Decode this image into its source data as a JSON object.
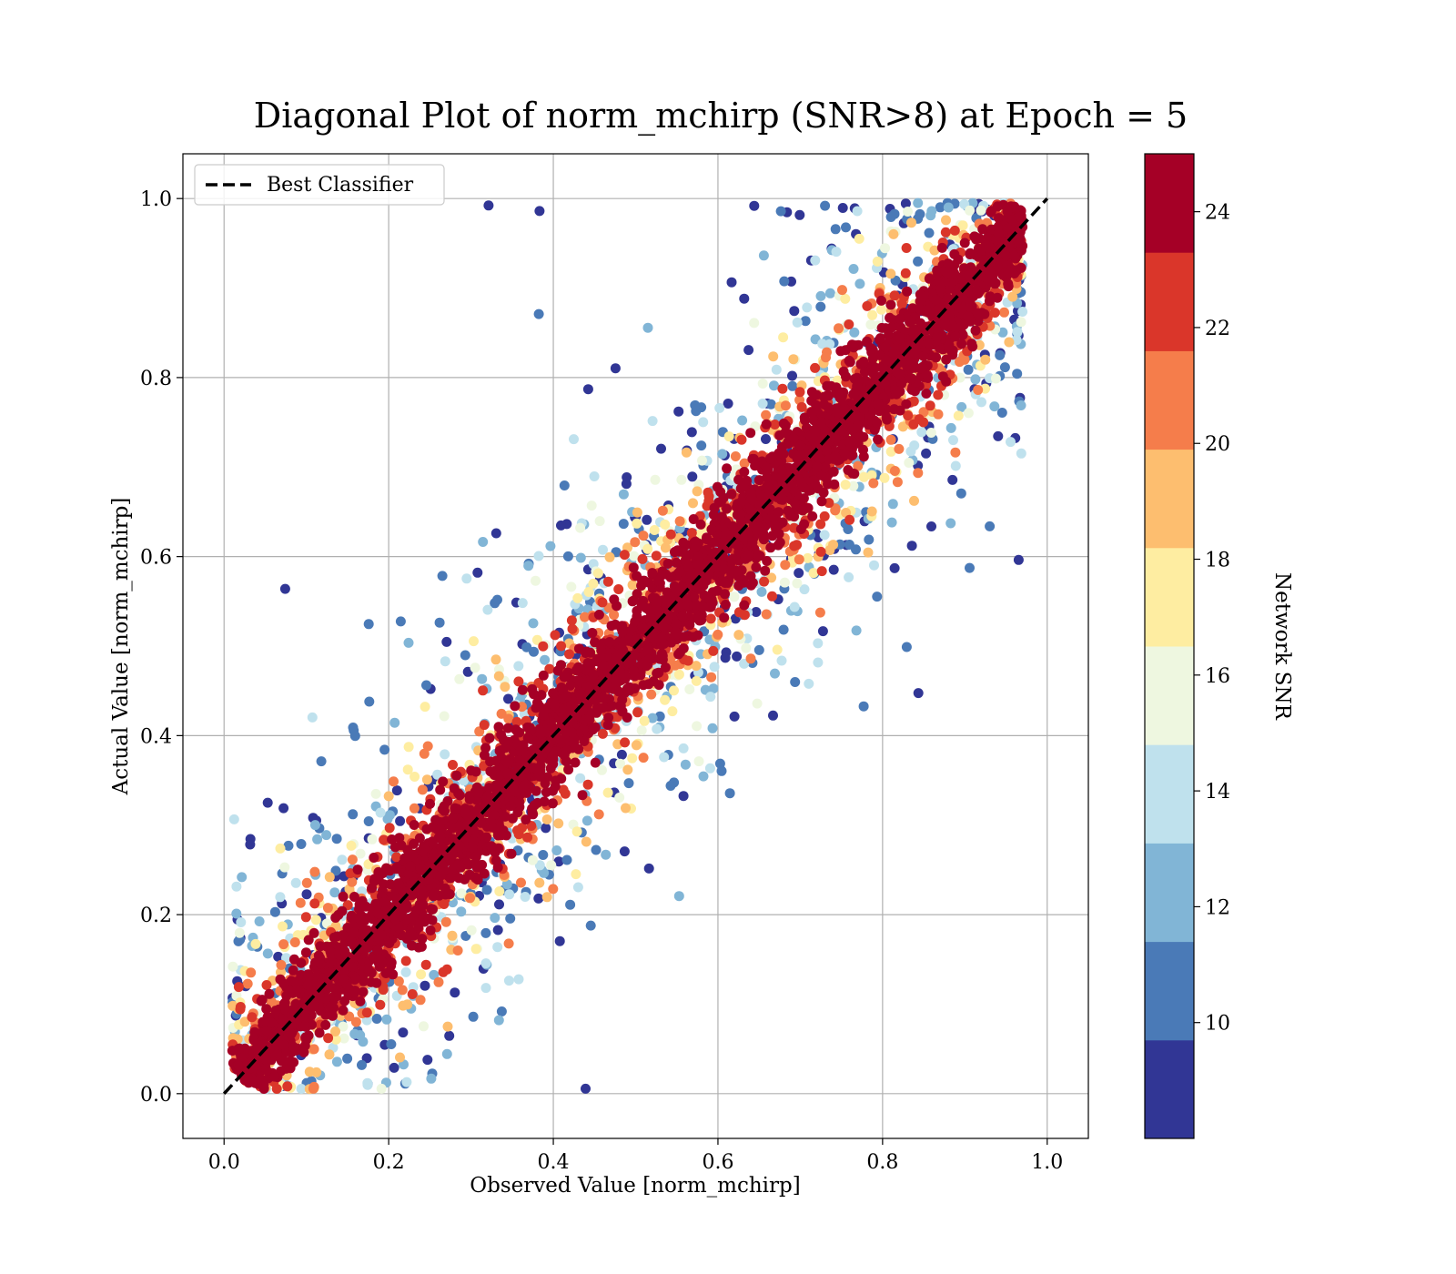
{
  "chart_data": {
    "type": "scatter",
    "title": "Diagonal Plot of norm_mchirp (SNR>8) at Epoch = 5",
    "xlabel": "Observed Value [norm_mchirp]",
    "ylabel": "Actual Value [norm_mchirp]",
    "xlim": [
      -0.05,
      1.05
    ],
    "ylim": [
      -0.05,
      1.05
    ],
    "x_ticks": [
      "0.0",
      "0.2",
      "0.4",
      "0.6",
      "0.8",
      "1.0"
    ],
    "y_ticks": [
      "0.0",
      "0.2",
      "0.4",
      "0.6",
      "0.8",
      "1.0"
    ],
    "grid": true,
    "legend": {
      "placement": "top-left",
      "entries": [
        "Best Classifier"
      ]
    },
    "reference_line": {
      "name": "Best Classifier",
      "x": [
        0.0,
        1.0
      ],
      "y": [
        0.0,
        1.0
      ],
      "style": "dashed",
      "color": "#000000"
    },
    "colorbar": {
      "label": "Network SNR",
      "range": [
        8,
        25
      ],
      "ticks": [
        "10",
        "12",
        "14",
        "16",
        "18",
        "20",
        "22",
        "24"
      ],
      "levels": [
        {
          "from": 8,
          "to": 9.7,
          "color": "#313695"
        },
        {
          "from": 9.7,
          "to": 11.4,
          "color": "#4a7ab7"
        },
        {
          "from": 11.4,
          "to": 13.1,
          "color": "#81b5d6"
        },
        {
          "from": 13.1,
          "to": 14.8,
          "color": "#bfe1ed"
        },
        {
          "from": 14.8,
          "to": 16.5,
          "color": "#eef7e0"
        },
        {
          "from": 16.5,
          "to": 18.2,
          "color": "#feeda1"
        },
        {
          "from": 18.2,
          "to": 19.9,
          "color": "#fdbe6f"
        },
        {
          "from": 19.9,
          "to": 21.6,
          "color": "#f57d4b"
        },
        {
          "from": 21.6,
          "to": 23.3,
          "color": "#da362a"
        },
        {
          "from": 23.3,
          "to": 25,
          "color": "#a50026"
        }
      ]
    },
    "series": [
      {
        "description_of_distribution": "dense scatter of points clustered along y=x; high SNR (dark red) near diagonal, lower SNR (blue) spreading farther away",
        "x_range": [
          0.02,
          0.96
        ],
        "y_range": [
          0.0,
          1.0
        ],
        "spread_by_snr": [
          {
            "snr": 24.5,
            "sigma": 0.03
          },
          {
            "snr": 22.5,
            "sigma": 0.05
          },
          {
            "snr": 20.5,
            "sigma": 0.065
          },
          {
            "snr": 19,
            "sigma": 0.075
          },
          {
            "snr": 17.3,
            "sigma": 0.085
          },
          {
            "snr": 15.6,
            "sigma": 0.095
          },
          {
            "snr": 13.9,
            "sigma": 0.105
          },
          {
            "snr": 12.2,
            "sigma": 0.12
          },
          {
            "snr": 10.5,
            "sigma": 0.135
          },
          {
            "snr": 8.8,
            "sigma": 0.16
          }
        ]
      }
    ]
  }
}
